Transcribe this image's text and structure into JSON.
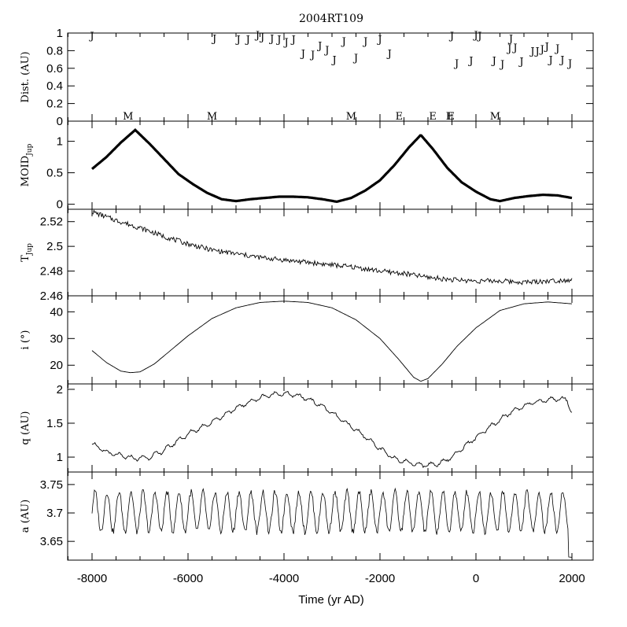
{
  "chart_data": {
    "type": "line",
    "title": "2004RT109",
    "xlabel": "Time (yr AD)",
    "xlim": [
      -8000,
      2000
    ],
    "x_ticks": [
      -8000,
      -6000,
      -4000,
      -2000,
      0,
      2000
    ],
    "panels": [
      {
        "name": "dist",
        "ylabel": "Dist. (AU)",
        "ylim": [
          0,
          1
        ],
        "y_ticks": [
          0,
          0.2,
          0.4,
          0.6,
          0.8,
          1
        ],
        "tick_labels": [
          "0",
          "0.2",
          "0.4",
          "0.6",
          "0.8",
          "1"
        ],
        "jupiter_encounters": {
          "symbol": "J",
          "points": [
            [
              -8000,
              0.98
            ],
            [
              -5450,
              0.95
            ],
            [
              -4950,
              0.94
            ],
            [
              -4750,
              0.94
            ],
            [
              -4550,
              0.99
            ],
            [
              -4450,
              0.97
            ],
            [
              -4250,
              0.95
            ],
            [
              -4100,
              0.94
            ],
            [
              -3950,
              0.91
            ],
            [
              -3800,
              0.94
            ],
            [
              -3600,
              0.78
            ],
            [
              -3400,
              0.77
            ],
            [
              -3250,
              0.87
            ],
            [
              -3100,
              0.82
            ],
            [
              -2950,
              0.71
            ],
            [
              -2750,
              0.92
            ],
            [
              -2500,
              0.73
            ],
            [
              -2300,
              0.92
            ],
            [
              -2000,
              0.94
            ],
            [
              -1800,
              0.78
            ],
            [
              -500,
              0.98
            ],
            [
              -400,
              0.67
            ],
            [
              -100,
              0.7
            ],
            [
              0,
              0.99
            ],
            [
              80,
              0.98
            ],
            [
              380,
              0.7
            ],
            [
              550,
              0.66
            ],
            [
              700,
              0.84
            ],
            [
              730,
              0.95
            ],
            [
              820,
              0.85
            ],
            [
              950,
              0.69
            ],
            [
              1180,
              0.81
            ],
            [
              1280,
              0.81
            ],
            [
              1380,
              0.83
            ],
            [
              1480,
              0.86
            ],
            [
              1560,
              0.71
            ],
            [
              1700,
              0.84
            ],
            [
              1800,
              0.71
            ],
            [
              1960,
              0.67
            ]
          ]
        },
        "close_approaches": [
          {
            "label": "M",
            "x": -7250,
            "y": 0
          },
          {
            "label": "M",
            "x": -5500,
            "y": 0
          },
          {
            "label": "M",
            "x": -2600,
            "y": 0
          },
          {
            "label": "E",
            "x": -1600,
            "y": 0
          },
          {
            "label": "E",
            "x": -900,
            "y": 0
          },
          {
            "label": "E",
            "x": -550,
            "y": 0
          },
          {
            "label": "E",
            "x": -520,
            "y": 0
          },
          {
            "label": "M",
            "x": 400,
            "y": 0
          }
        ]
      },
      {
        "name": "moid",
        "ylabel": "MOID",
        "ylabel_sub": "Jup",
        "ylim": [
          -0.08,
          1.32
        ],
        "y_ticks": [
          0,
          0.5,
          1
        ],
        "tick_labels": [
          "0",
          "0.5",
          "1"
        ],
        "style": "thick",
        "series": [
          [
            -8000,
            0.56
          ],
          [
            -7700,
            0.75
          ],
          [
            -7400,
            0.98
          ],
          [
            -7100,
            1.18
          ],
          [
            -6800,
            0.96
          ],
          [
            -6500,
            0.72
          ],
          [
            -6200,
            0.48
          ],
          [
            -5900,
            0.32
          ],
          [
            -5600,
            0.18
          ],
          [
            -5300,
            0.08
          ],
          [
            -5000,
            0.05
          ],
          [
            -4700,
            0.08
          ],
          [
            -4400,
            0.1
          ],
          [
            -4100,
            0.12
          ],
          [
            -3800,
            0.12
          ],
          [
            -3500,
            0.11
          ],
          [
            -3200,
            0.08
          ],
          [
            -2900,
            0.04
          ],
          [
            -2600,
            0.1
          ],
          [
            -2300,
            0.22
          ],
          [
            -2000,
            0.38
          ],
          [
            -1700,
            0.62
          ],
          [
            -1400,
            0.9
          ],
          [
            -1150,
            1.1
          ],
          [
            -900,
            0.88
          ],
          [
            -600,
            0.58
          ],
          [
            -300,
            0.35
          ],
          [
            0,
            0.2
          ],
          [
            300,
            0.08
          ],
          [
            500,
            0.05
          ],
          [
            800,
            0.1
          ],
          [
            1100,
            0.13
          ],
          [
            1400,
            0.15
          ],
          [
            1700,
            0.14
          ],
          [
            2000,
            0.1
          ]
        ]
      },
      {
        "name": "tjup",
        "ylabel": "T",
        "ylabel_sub": "Jup",
        "ylim": [
          2.46,
          2.53
        ],
        "y_ticks": [
          2.46,
          2.48,
          2.5,
          2.52
        ],
        "tick_labels": [
          "2.46",
          "2.48",
          "2.5",
          "2.52"
        ],
        "noise": 0.002,
        "series": [
          [
            -8000,
            2.528
          ],
          [
            -7500,
            2.521
          ],
          [
            -7000,
            2.515
          ],
          [
            -6500,
            2.508
          ],
          [
            -6000,
            2.502
          ],
          [
            -5500,
            2.497
          ],
          [
            -5000,
            2.494
          ],
          [
            -4500,
            2.491
          ],
          [
            -4000,
            2.489
          ],
          [
            -3500,
            2.487
          ],
          [
            -3000,
            2.485
          ],
          [
            -2500,
            2.483
          ],
          [
            -2000,
            2.48
          ],
          [
            -1500,
            2.478
          ],
          [
            -1000,
            2.475
          ],
          [
            -500,
            2.473
          ],
          [
            0,
            2.472
          ],
          [
            500,
            2.472
          ],
          [
            1000,
            2.471
          ],
          [
            1500,
            2.472
          ],
          [
            2000,
            2.473
          ]
        ]
      },
      {
        "name": "incl",
        "ylabel": "i (°)",
        "ylim": [
          13,
          46
        ],
        "y_ticks": [
          20,
          30,
          40
        ],
        "tick_labels": [
          "20",
          "30",
          "40"
        ],
        "series": [
          [
            -8000,
            25.5
          ],
          [
            -7700,
            21
          ],
          [
            -7400,
            17.8
          ],
          [
            -7200,
            17.2
          ],
          [
            -7000,
            17.5
          ],
          [
            -6700,
            20.5
          ],
          [
            -6400,
            25
          ],
          [
            -6000,
            31
          ],
          [
            -5500,
            37.5
          ],
          [
            -5000,
            41.5
          ],
          [
            -4500,
            43.5
          ],
          [
            -4000,
            44
          ],
          [
            -3500,
            43.5
          ],
          [
            -3000,
            41.5
          ],
          [
            -2500,
            37
          ],
          [
            -2000,
            30
          ],
          [
            -1600,
            22
          ],
          [
            -1300,
            15.5
          ],
          [
            -1150,
            14
          ],
          [
            -1000,
            15
          ],
          [
            -700,
            20.5
          ],
          [
            -400,
            27
          ],
          [
            0,
            34
          ],
          [
            500,
            40.5
          ],
          [
            1000,
            43
          ],
          [
            1500,
            43.7
          ],
          [
            2000,
            43
          ]
        ]
      },
      {
        "name": "q",
        "ylabel": "q (AU)",
        "ylim": [
          0.78,
          2.08
        ],
        "y_ticks": [
          1,
          1.5,
          2
        ],
        "tick_labels": [
          "1",
          "1.5",
          "2"
        ],
        "osc_amp": 0.06,
        "series": [
          [
            -8000,
            1.2
          ],
          [
            -7700,
            1.07
          ],
          [
            -7400,
            1.02
          ],
          [
            -7100,
            0.98
          ],
          [
            -6800,
            1.0
          ],
          [
            -6500,
            1.1
          ],
          [
            -6200,
            1.25
          ],
          [
            -5900,
            1.38
          ],
          [
            -5600,
            1.48
          ],
          [
            -5300,
            1.6
          ],
          [
            -5000,
            1.72
          ],
          [
            -4700,
            1.82
          ],
          [
            -4400,
            1.9
          ],
          [
            -4100,
            1.94
          ],
          [
            -3800,
            1.92
          ],
          [
            -3500,
            1.86
          ],
          [
            -3200,
            1.75
          ],
          [
            -2900,
            1.6
          ],
          [
            -2600,
            1.45
          ],
          [
            -2300,
            1.3
          ],
          [
            -2000,
            1.12
          ],
          [
            -1700,
            0.98
          ],
          [
            -1400,
            0.92
          ],
          [
            -1100,
            0.88
          ],
          [
            -800,
            0.9
          ],
          [
            -500,
            1.0
          ],
          [
            -200,
            1.18
          ],
          [
            100,
            1.34
          ],
          [
            400,
            1.5
          ],
          [
            700,
            1.65
          ],
          [
            1000,
            1.76
          ],
          [
            1300,
            1.82
          ],
          [
            1600,
            1.86
          ],
          [
            1900,
            1.85
          ],
          [
            2000,
            1.65
          ]
        ]
      },
      {
        "name": "a",
        "ylabel": "a (AU)",
        "ylim": [
          3.617,
          3.772
        ],
        "y_ticks": [
          3.65,
          3.7,
          3.75
        ],
        "tick_labels": [
          "3.65",
          "3.7",
          "3.75"
        ],
        "osc_mean": 3.702,
        "osc_amp": 0.035,
        "osc_period": 250,
        "series": [
          [
            -8000,
            3.695
          ],
          [
            2000,
            3.622
          ]
        ]
      }
    ]
  }
}
